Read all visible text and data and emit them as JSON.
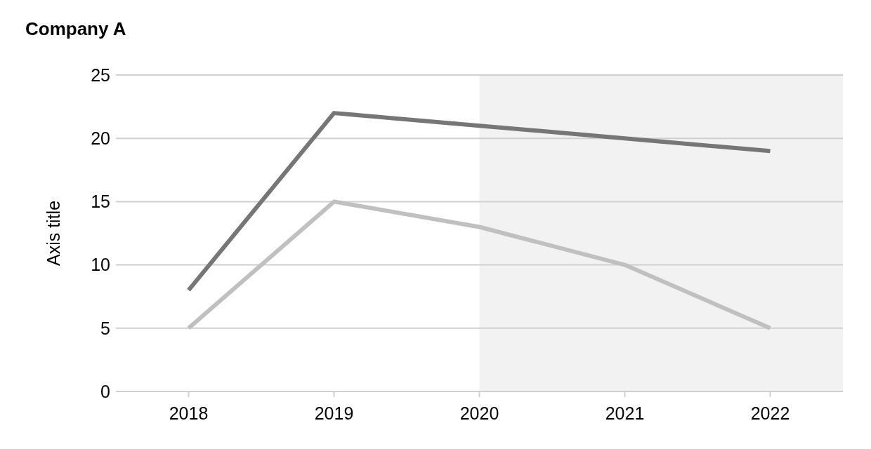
{
  "chart_data": {
    "type": "line",
    "title": "Company A",
    "ylabel": "Axis title",
    "x": [
      2018,
      2019,
      2020,
      2021,
      2022
    ],
    "xlim": [
      2017.5,
      2022.5
    ],
    "xticks": [
      2018,
      2019,
      2020,
      2021,
      2022
    ],
    "ylim": [
      0,
      25
    ],
    "yticks": [
      0,
      5,
      10,
      15,
      20,
      25
    ],
    "grid": "y",
    "legend": false,
    "marker": "none",
    "line_style": "solid",
    "bands": [
      {
        "axis": "x",
        "from": 2020,
        "to": 2022.5,
        "color": "#f2f2f2"
      }
    ],
    "series": [
      {
        "color": "#767676",
        "values": [
          8,
          22,
          21,
          20,
          19
        ]
      },
      {
        "color": "#c0c0c0",
        "values": [
          5,
          15,
          13,
          10,
          5
        ]
      }
    ]
  }
}
